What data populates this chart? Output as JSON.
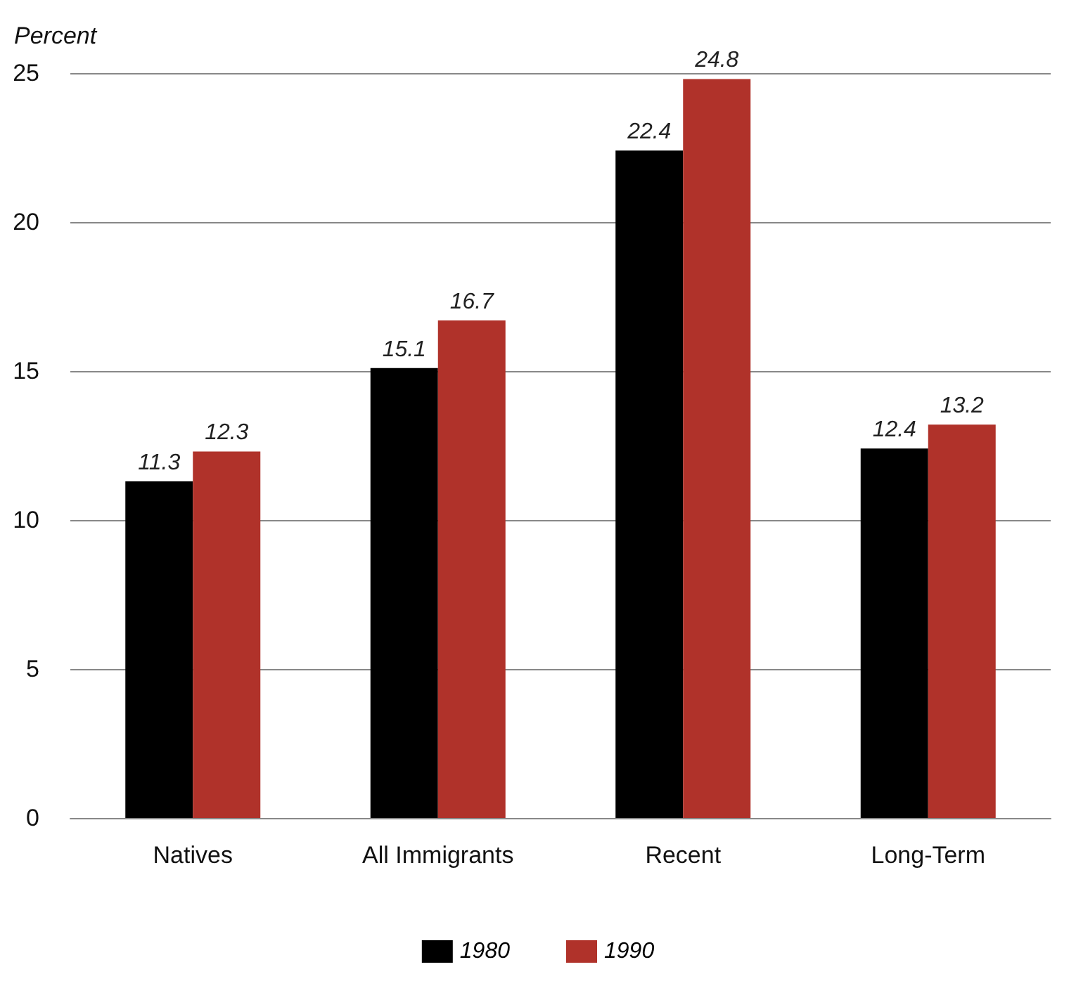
{
  "chart_data": {
    "type": "bar",
    "ylabel": "Percent",
    "categories": [
      "Natives",
      "All Immigrants",
      "Recent",
      "Long-Term"
    ],
    "series": [
      {
        "name": "1980",
        "color": "#000000",
        "values": [
          11.3,
          15.1,
          22.4,
          12.4
        ]
      },
      {
        "name": "1990",
        "color": "#b0322a",
        "values": [
          12.3,
          16.7,
          24.8,
          13.2
        ]
      }
    ],
    "ylim": [
      0,
      25
    ],
    "yticks": [
      0,
      5,
      10,
      15,
      20,
      25
    ],
    "grid": "y",
    "legend": "bottom",
    "data_labels": true
  }
}
